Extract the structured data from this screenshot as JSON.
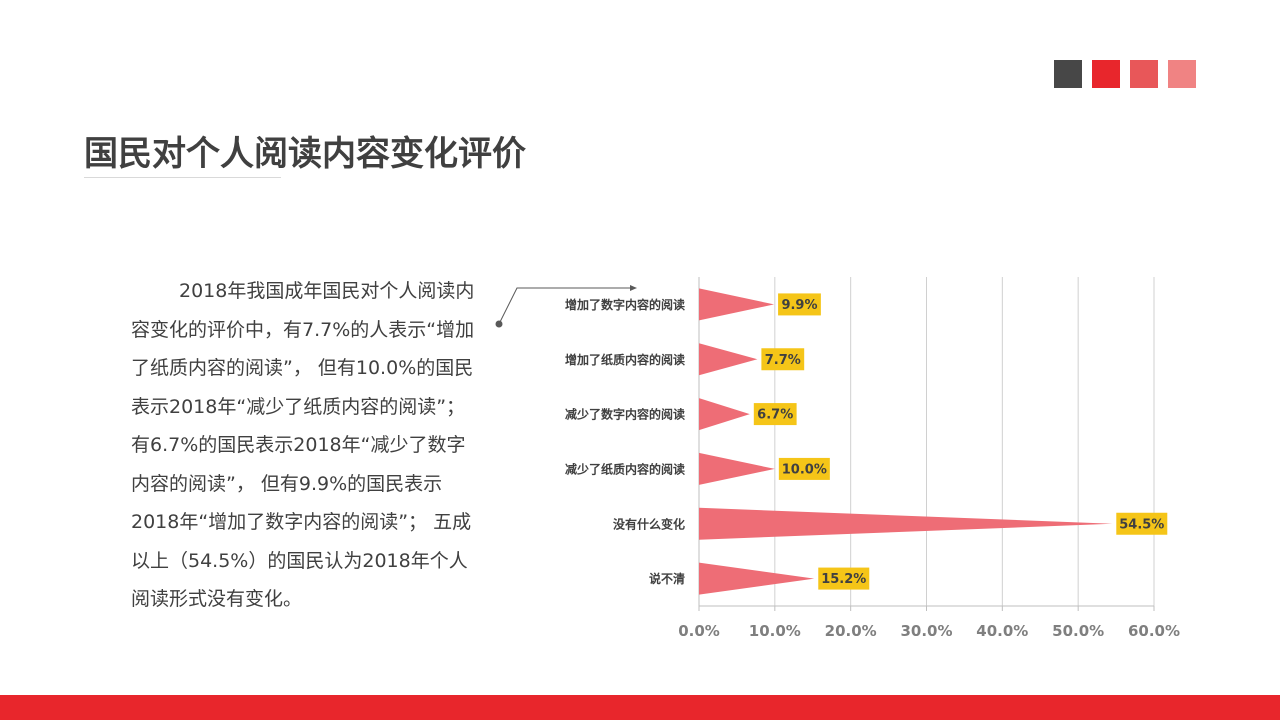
{
  "colors": {
    "squares": [
      "#474747",
      "#e8262c",
      "#e85759",
      "#f08383"
    ],
    "title_text": "#404040",
    "bar_fill": "#ee6d76",
    "label_bg": "#f5c518",
    "bottom_bar": "#e8262c",
    "grid": "#d0d0d0",
    "axis_text": "#7f7f7f"
  },
  "header": {
    "title": "国民对个人阅读内容变化评价"
  },
  "body": {
    "paragraph": "2018年我国成年国民对个人阅读内容变化的评价中，有7.7%的人表示“增加了纸质内容的阅读”， 但有10.0%的国民表示2018年“减少了纸质内容的阅读”； 有6.7%的国民表示2018年“减少了数字内容的阅读”， 但有9.9%的国民表示2018年“增加了数字内容的阅读”； 五成以上（54.5%）的国民认为2018年个人阅读形式没有变化。"
  },
  "chart_data": {
    "type": "bar",
    "orientation": "horizontal",
    "bar_shape": "triangle",
    "categories": [
      "增加了数字内容的阅读",
      "增加了纸质内容的阅读",
      "减少了数字内容的阅读",
      "减少了纸质内容的阅读",
      "没有什么变化",
      "说不清"
    ],
    "values": [
      9.9,
      7.7,
      6.7,
      10.0,
      54.5,
      15.2
    ],
    "data_labels": [
      "9.9%",
      "7.7%",
      "6.7%",
      "10.0%",
      "54.5%",
      "15.2%"
    ],
    "xlim": [
      0,
      60
    ],
    "x_ticks": [
      0,
      10,
      20,
      30,
      40,
      50,
      60
    ],
    "x_tick_labels": [
      "0.0%",
      "10.0%",
      "20.0%",
      "30.0%",
      "40.0%",
      "50.0%",
      "60.0%"
    ],
    "grid": true,
    "title": "",
    "xlabel": "",
    "ylabel": ""
  }
}
